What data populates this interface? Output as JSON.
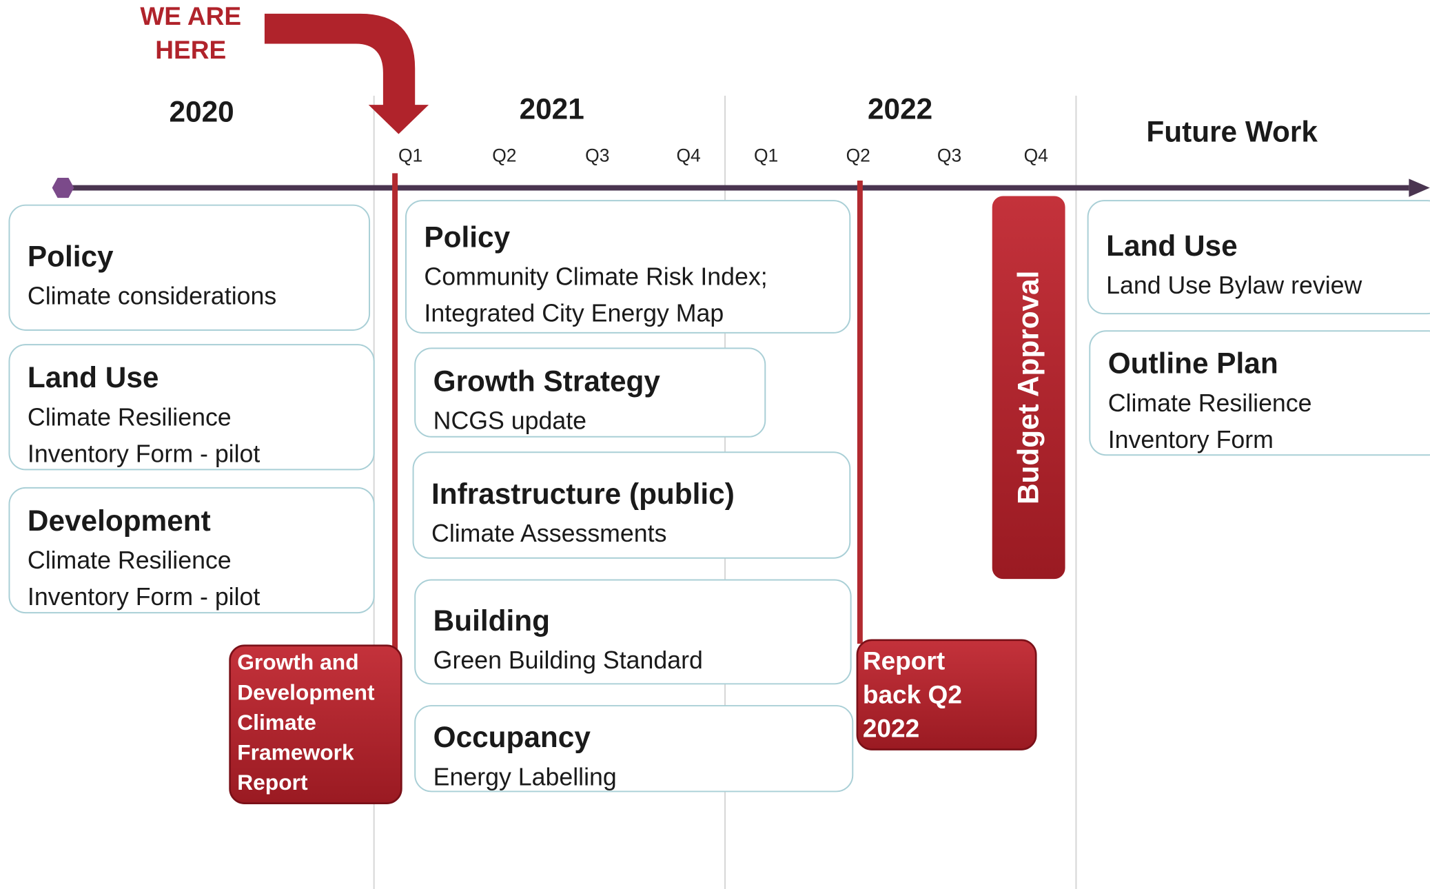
{
  "callout": {
    "lines": [
      "WE ARE",
      "HERE"
    ]
  },
  "periods": [
    "2020",
    "2021",
    "2022",
    "Future Work"
  ],
  "quarters": [
    "Q1",
    "Q2",
    "Q3",
    "Q4",
    "Q1",
    "Q2",
    "Q3",
    "Q4"
  ],
  "cards": [
    {
      "title": "Policy",
      "lines": [
        "Climate considerations"
      ]
    },
    {
      "title": "Land Use",
      "lines": [
        "Climate Resilience",
        "Inventory Form - pilot"
      ]
    },
    {
      "title": "Development",
      "lines": [
        "Climate Resilience",
        "Inventory Form - pilot"
      ]
    },
    {
      "title": "Policy",
      "lines": [
        "Community Climate Risk Index;",
        "Integrated City Energy Map"
      ]
    },
    {
      "title": "Growth Strategy",
      "lines": [
        "NCGS update"
      ]
    },
    {
      "title": "Infrastructure (public)",
      "lines": [
        "Climate Assessments"
      ]
    },
    {
      "title": "Building",
      "lines": [
        "Green Building Standard"
      ]
    },
    {
      "title": "Occupancy",
      "lines": [
        "Energy Labelling"
      ]
    },
    {
      "title": "Land Use",
      "lines": [
        "Land Use Bylaw review"
      ]
    },
    {
      "title": "Outline Plan",
      "lines": [
        "Climate Resilience",
        "Inventory Form"
      ]
    }
  ],
  "milestones": [
    {
      "lines": [
        "Growth and",
        "Development",
        "Climate",
        "Framework",
        "Report"
      ]
    },
    {
      "lines": [
        "Report",
        "back Q2",
        "2022"
      ]
    },
    {
      "lines": [
        "Budget Approval"
      ]
    }
  ]
}
